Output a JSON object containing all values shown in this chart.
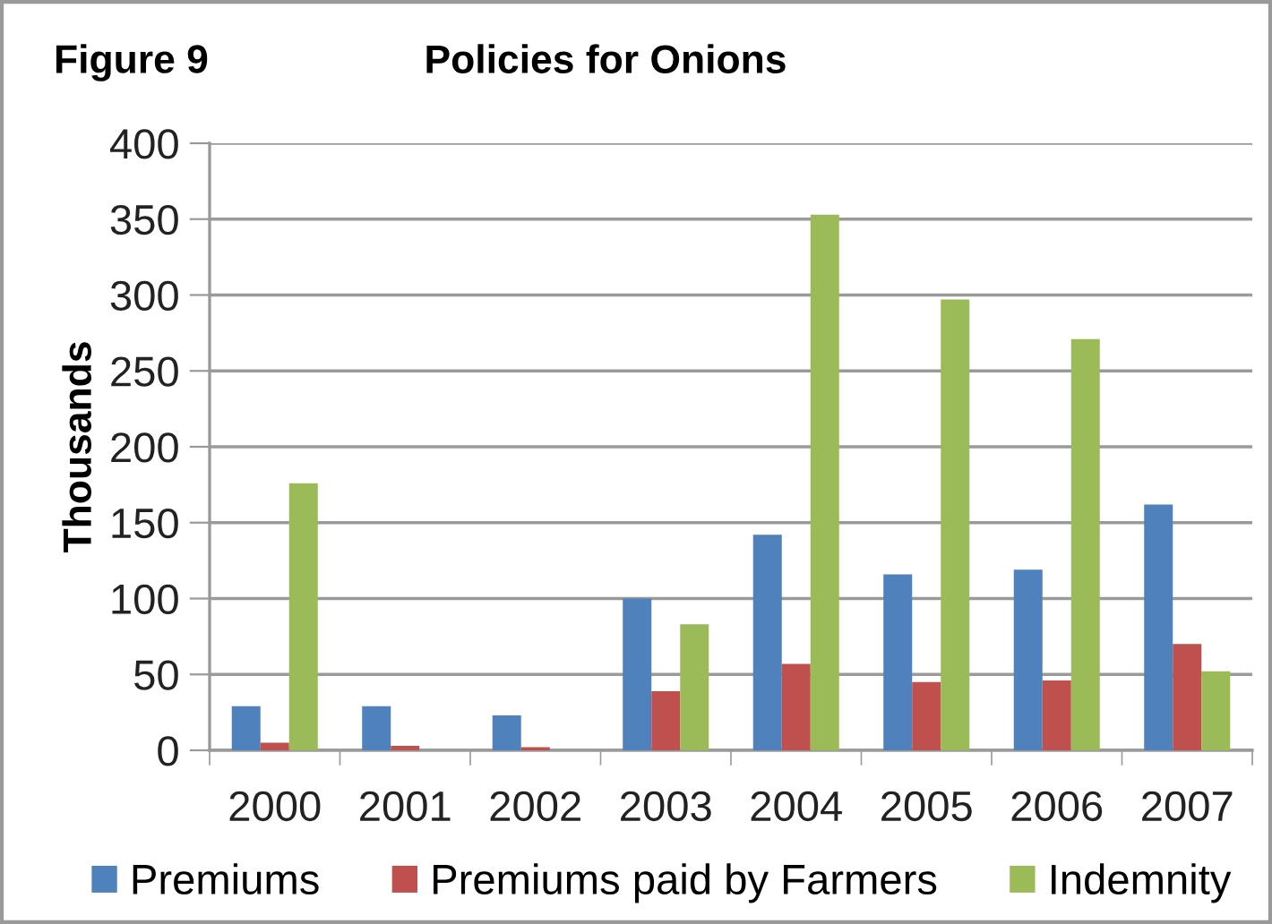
{
  "chart_data": {
    "type": "bar",
    "title": "Policies for Onions",
    "ylabel": "Thousands",
    "annotations": [
      "Figure 9"
    ],
    "categories": [
      "2000",
      "2001",
      "2002",
      "2003",
      "2004",
      "2005",
      "2006",
      "2007"
    ],
    "series": [
      {
        "name": "Premiums",
        "color": "#4f81bd",
        "values": [
          29,
          29,
          23,
          100,
          142,
          116,
          119,
          162
        ]
      },
      {
        "name": "Premiums paid by Farmers",
        "color": "#c0504d",
        "values": [
          5,
          3,
          2,
          39,
          57,
          45,
          46,
          70
        ]
      },
      {
        "name": "Indemnity",
        "color": "#9bbb59",
        "values": [
          176,
          null,
          null,
          83,
          353,
          297,
          271,
          52
        ]
      }
    ],
    "ylim": [
      0,
      400
    ],
    "yticks": [
      0,
      50,
      100,
      150,
      200,
      250,
      300,
      350,
      400
    ],
    "grid": "y",
    "legend": "bottom"
  }
}
